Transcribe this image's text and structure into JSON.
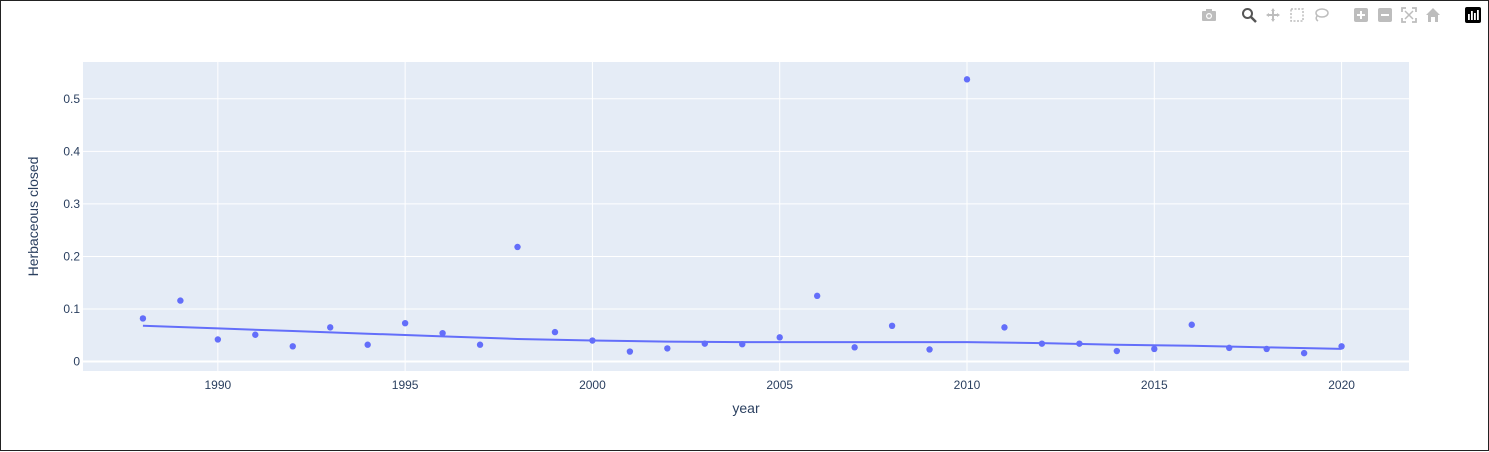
{
  "modebar": {
    "items": [
      {
        "name": "camera-icon"
      },
      {
        "name": "zoom-icon"
      },
      {
        "name": "pan-icon"
      },
      {
        "name": "box-select-icon"
      },
      {
        "name": "lasso-select-icon"
      },
      {
        "name": "zoom-in-icon"
      },
      {
        "name": "zoom-out-icon"
      },
      {
        "name": "autoscale-icon"
      },
      {
        "name": "reset-axes-icon"
      },
      {
        "name": "plotly-logo-icon"
      }
    ]
  },
  "chart_data": {
    "type": "scatter",
    "xlabel": "year",
    "ylabel": "Herbaceous closed",
    "xlim": [
      1986.4,
      2021.8
    ],
    "ylim": [
      -0.018,
      0.57
    ],
    "xticks": [
      1990,
      1995,
      2000,
      2005,
      2010,
      2015,
      2020
    ],
    "yticks": [
      0,
      0.1,
      0.2,
      0.3,
      0.4,
      0.5
    ],
    "ytick_labels": [
      "0",
      "0.1",
      "0.2",
      "0.3",
      "0.4",
      "0.5"
    ],
    "grid": true,
    "colors": {
      "marker": "#636efa",
      "plot_bg": "#e5ecf6",
      "grid": "#ffffff",
      "text": "#2a3f5f"
    },
    "series": [
      {
        "mode": "markers",
        "x": [
          1988,
          1989,
          1990,
          1991,
          1992,
          1993,
          1994,
          1995,
          1996,
          1997,
          1998,
          1999,
          2000,
          2001,
          2002,
          2003,
          2004,
          2005,
          2006,
          2007,
          2008,
          2009,
          2010,
          2011,
          2012,
          2013,
          2014,
          2015,
          2016,
          2017,
          2018,
          2019,
          2020
        ],
        "y": [
          0.082,
          0.116,
          0.042,
          0.051,
          0.029,
          0.065,
          0.032,
          0.073,
          0.054,
          0.032,
          0.218,
          0.056,
          0.04,
          0.019,
          0.025,
          0.034,
          0.033,
          0.046,
          0.125,
          0.027,
          0.068,
          0.023,
          0.537,
          0.065,
          0.034,
          0.034,
          0.02,
          0.024,
          0.07,
          0.026,
          0.024,
          0.016,
          0.029
        ]
      },
      {
        "mode": "lines",
        "x": [
          1988,
          1990,
          1992,
          1994,
          1996,
          1998,
          2000,
          2002,
          2004,
          2006,
          2008,
          2010,
          2012,
          2014,
          2016,
          2018,
          2020
        ],
        "y": [
          0.068,
          0.063,
          0.058,
          0.053,
          0.048,
          0.043,
          0.04,
          0.038,
          0.037,
          0.037,
          0.037,
          0.037,
          0.035,
          0.032,
          0.03,
          0.027,
          0.024
        ]
      }
    ]
  }
}
